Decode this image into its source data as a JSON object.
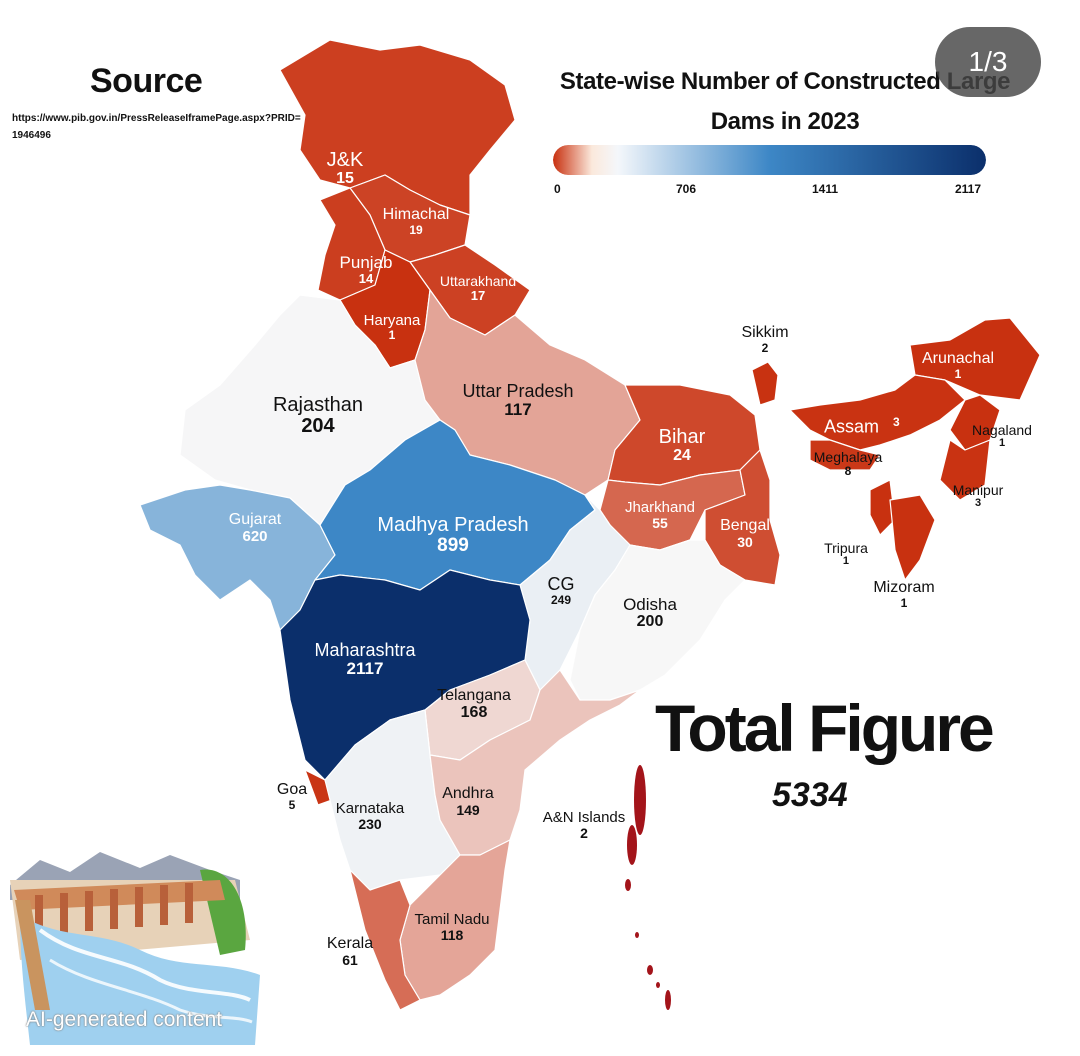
{
  "source": {
    "title": "Source",
    "url": "https://www.pib.gov.in/PressReleaseIframePage.aspx?PRID=1946496"
  },
  "title": "State-wise Number of Constructed Large Dams in 2023",
  "legend": {
    "ticks": [
      "0",
      "706",
      "1411",
      "2117"
    ],
    "colors": [
      "#c8300f",
      "#f7f7f7",
      "#3d87c6",
      "#0b2f6b"
    ]
  },
  "page_indicator": "1/3",
  "total": {
    "label": "Total Figure",
    "value": "5334"
  },
  "watermark": "AI-generated content",
  "chart_data": {
    "type": "choropleth",
    "title": "State-wise Number of Constructed Large Dams in 2023",
    "value_range": [
      0,
      2117
    ],
    "states": [
      {
        "name": "J&K",
        "value": 15
      },
      {
        "name": "Himachal",
        "value": 19
      },
      {
        "name": "Punjab",
        "value": 14
      },
      {
        "name": "Uttarakhand",
        "value": 17
      },
      {
        "name": "Haryana",
        "value": 1
      },
      {
        "name": "Rajasthan",
        "value": 204
      },
      {
        "name": "Uttar Pradesh",
        "value": 117
      },
      {
        "name": "Bihar",
        "value": 24
      },
      {
        "name": "Sikkim",
        "value": 2
      },
      {
        "name": "Arunachal",
        "value": 1
      },
      {
        "name": "Assam",
        "value": 3
      },
      {
        "name": "Nagaland",
        "value": 1
      },
      {
        "name": "Meghalaya",
        "value": 8
      },
      {
        "name": "Manipur",
        "value": 3
      },
      {
        "name": "Tripura",
        "value": 1
      },
      {
        "name": "Mizoram",
        "value": 1
      },
      {
        "name": "Gujarat",
        "value": 620
      },
      {
        "name": "Madhya Pradesh",
        "value": 899
      },
      {
        "name": "Jharkhand",
        "value": 55
      },
      {
        "name": "Bengal",
        "value": 30
      },
      {
        "name": "CG",
        "value": 249
      },
      {
        "name": "Odisha",
        "value": 200
      },
      {
        "name": "Maharashtra",
        "value": 2117
      },
      {
        "name": "Telangana",
        "value": 168
      },
      {
        "name": "Goa",
        "value": 5
      },
      {
        "name": "Karnataka",
        "value": 230
      },
      {
        "name": "Andhra",
        "value": 149
      },
      {
        "name": "A&N Islands",
        "value": 2
      },
      {
        "name": "Tamil Nadu",
        "value": 118
      },
      {
        "name": "Kerala",
        "value": 61
      }
    ]
  }
}
